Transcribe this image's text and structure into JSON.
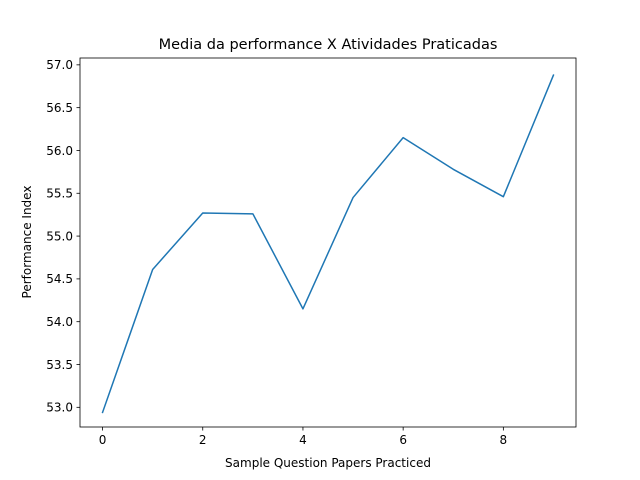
{
  "chart_data": {
    "type": "line",
    "title": "Media da performance X Atividades Praticadas",
    "xlabel": "Sample Question Papers Practiced",
    "ylabel": "Performance Index",
    "x": [
      0,
      1,
      2,
      3,
      4,
      5,
      6,
      7,
      8,
      9
    ],
    "series": [
      {
        "values": [
          52.94,
          54.61,
          55.27,
          55.26,
          54.15,
          55.45,
          56.15,
          55.78,
          55.46,
          56.88
        ],
        "color": "#1f77b4"
      }
    ],
    "xlim": [
      -0.45,
      9.45
    ],
    "ylim": [
      52.77,
      57.08
    ],
    "xticks": [
      0,
      2,
      4,
      6,
      8
    ],
    "xtick_labels": [
      "0",
      "2",
      "4",
      "6",
      "8"
    ],
    "yticks": [
      53.0,
      53.5,
      54.0,
      54.5,
      55.0,
      55.5,
      56.0,
      56.5,
      57.0
    ],
    "ytick_labels": [
      "53.0",
      "53.5",
      "54.0",
      "54.5",
      "55.0",
      "55.5",
      "56.0",
      "56.5",
      "57.0"
    ],
    "grid": false,
    "legend": "none"
  }
}
